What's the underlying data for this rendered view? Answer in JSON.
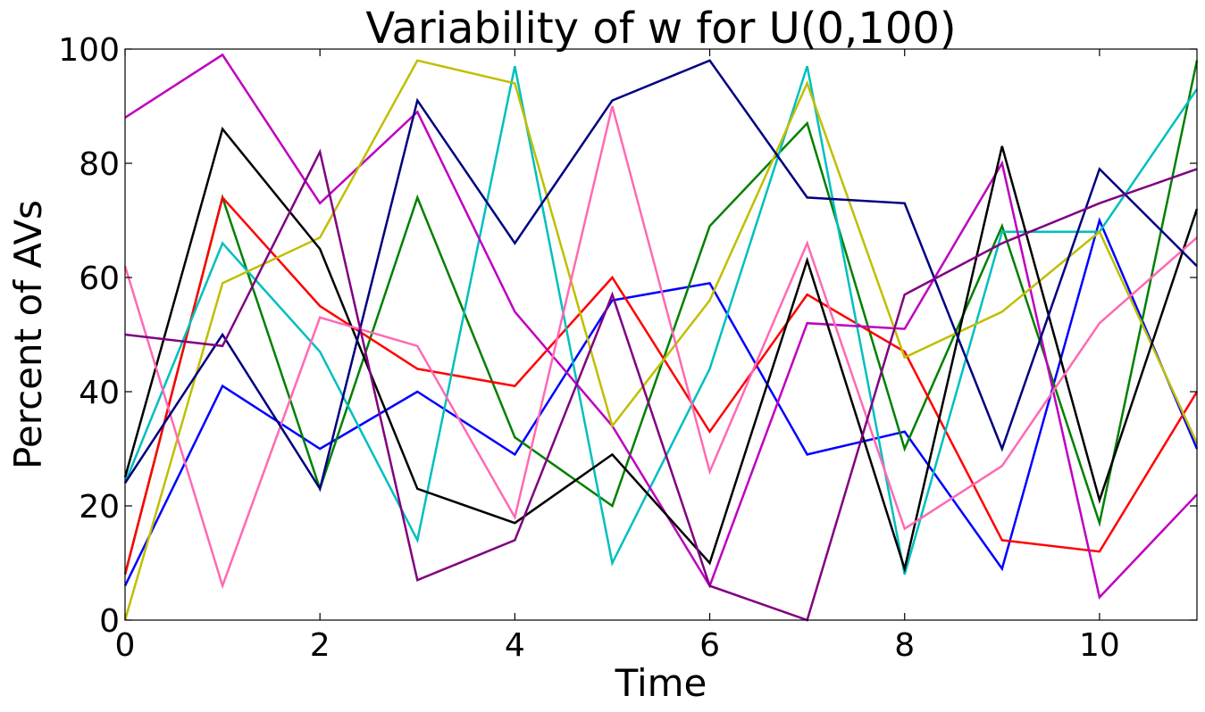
{
  "chart_data": {
    "type": "line",
    "title": "Variability of w for U(0,100)",
    "xlabel": "Time",
    "ylabel": "Percent of AVs",
    "xlim": [
      0,
      11
    ],
    "ylim": [
      0,
      100
    ],
    "x_ticks": [
      0,
      2,
      4,
      6,
      8,
      10
    ],
    "x_tick_labels": [
      "0",
      "2",
      "4",
      "6",
      "8",
      "10"
    ],
    "y_ticks": [
      0,
      20,
      40,
      60,
      80,
      100
    ],
    "y_tick_labels": [
      "0",
      "20",
      "40",
      "60",
      "80",
      "100"
    ],
    "grid": false,
    "legend": "none",
    "x": [
      0,
      1,
      2,
      3,
      4,
      5,
      6,
      7,
      8,
      9,
      10,
      11
    ],
    "series": [
      {
        "color": "#0000ff",
        "values": [
          6,
          41,
          30,
          40,
          29,
          56,
          59,
          29,
          33,
          9,
          70,
          30
        ]
      },
      {
        "color": "#008000",
        "values": [
          8,
          74,
          23,
          74,
          32,
          20,
          69,
          87,
          30,
          69,
          17,
          98
        ]
      },
      {
        "color": "#ff0000",
        "values": [
          8,
          74,
          55,
          44,
          41,
          60,
          33,
          57,
          47,
          14,
          12,
          40
        ]
      },
      {
        "color": "#00bfbf",
        "values": [
          24,
          66,
          47,
          14,
          97,
          10,
          44,
          97,
          8,
          68,
          68,
          93
        ]
      },
      {
        "color": "#bf00bf",
        "values": [
          88,
          99,
          73,
          89,
          54,
          34,
          6,
          52,
          51,
          80,
          4,
          22
        ]
      },
      {
        "color": "#bfbf00",
        "values": [
          0,
          59,
          67,
          98,
          94,
          34,
          56,
          94,
          46,
          54,
          68,
          31
        ]
      },
      {
        "color": "#000000",
        "values": [
          25,
          86,
          65,
          23,
          17,
          29,
          10,
          63,
          9,
          83,
          21,
          72
        ]
      },
      {
        "color": "#ff69b4",
        "values": [
          62,
          6,
          53,
          48,
          18,
          90,
          26,
          66,
          16,
          27,
          52,
          67
        ]
      },
      {
        "color": "#000080",
        "values": [
          24,
          50,
          23,
          91,
          66,
          91,
          98,
          74,
          73,
          30,
          79,
          62
        ]
      },
      {
        "color": "#800080",
        "values": [
          50,
          48,
          82,
          7,
          14,
          57,
          6,
          0,
          57,
          66,
          73,
          79
        ]
      }
    ]
  }
}
